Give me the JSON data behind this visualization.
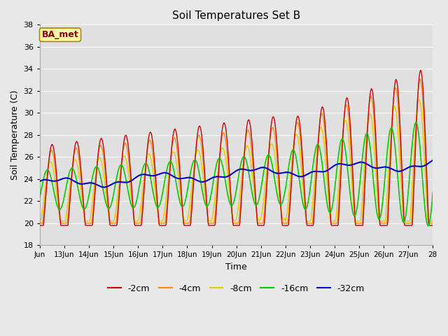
{
  "title": "Soil Temperatures Set B",
  "xlabel": "Time",
  "ylabel": "Soil Temperature (C)",
  "ylim": [
    18,
    38
  ],
  "xlim": [
    0,
    16
  ],
  "annotation": "BA_met",
  "fig_bg": "#e8e8e8",
  "plot_bg": "#e0e0e0",
  "colors": {
    "-2cm": "#cc0000",
    "-4cm": "#ff8800",
    "-8cm": "#ddcc00",
    "-16cm": "#00cc00",
    "-32cm": "#0000cc"
  },
  "xtick_labels": [
    "Jun",
    "13Jun",
    "14Jun",
    "15Jun",
    "16Jun",
    "17Jun",
    "18Jun",
    "19Jun",
    "20Jun",
    "21Jun",
    "22Jun",
    "23Jun",
    "24Jun",
    "25Jun",
    "26Jun",
    "27Jun",
    "28"
  ],
  "ytick_positions": [
    18,
    20,
    22,
    24,
    26,
    28,
    30,
    32,
    34,
    36,
    38
  ]
}
